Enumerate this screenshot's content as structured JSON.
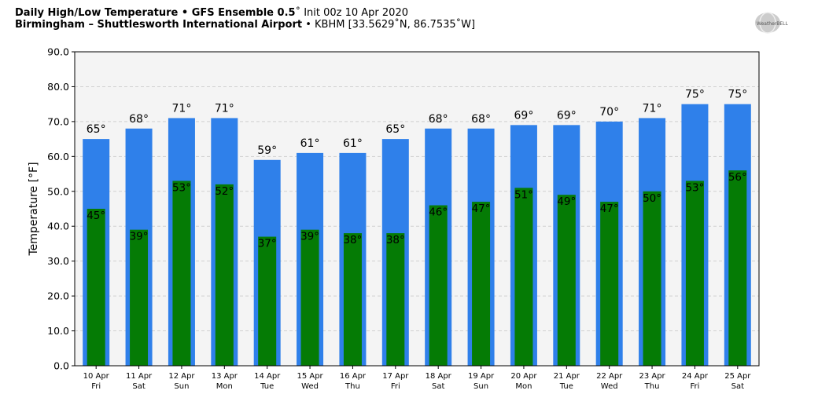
{
  "header": {
    "title_bold": "Daily High/Low Temperature • GFS Ensemble 0.5",
    "title_rest": "˚ Init 00z 10 Apr 2020",
    "location_bold": "Birmingham – Shuttlesworth International Airport",
    "location_rest": " • KBHM [33.5629˚N, 86.7535˚W]"
  },
  "logo": {
    "text": "WeatherBELL"
  },
  "colors": {
    "high": "#2f80ea",
    "low": "#057b05",
    "plot_bg": "#f4f4f4",
    "grid": "#d0d0d0"
  },
  "chart_data": {
    "type": "bar",
    "ylabel": "Temperature [°F]",
    "ylim": [
      0,
      90
    ],
    "yticks": [
      "0.0",
      "10.0",
      "20.0",
      "30.0",
      "40.0",
      "50.0",
      "60.0",
      "70.0",
      "80.0",
      "90.0"
    ],
    "grid": true,
    "categories": [
      "10 Apr",
      "11 Apr",
      "12 Apr",
      "13 Apr",
      "14 Apr",
      "15 Apr",
      "16 Apr",
      "17 Apr",
      "18 Apr",
      "19 Apr",
      "20 Apr",
      "21 Apr",
      "22 Apr",
      "23 Apr",
      "24 Apr",
      "25 Apr"
    ],
    "weekdays": [
      "Fri",
      "Sat",
      "Sun",
      "Mon",
      "Tue",
      "Wed",
      "Thu",
      "Fri",
      "Sat",
      "Sun",
      "Mon",
      "Tue",
      "Wed",
      "Thu",
      "Fri",
      "Sat"
    ],
    "series": [
      {
        "values": [
          65,
          68,
          71,
          71,
          59,
          61,
          61,
          65,
          68,
          68,
          69,
          69,
          70,
          71,
          75,
          75
        ]
      },
      {
        "values": [
          45,
          39,
          53,
          52,
          37,
          39,
          38,
          38,
          46,
          47,
          51,
          49,
          47,
          50,
          53,
          56
        ]
      }
    ],
    "high_labels": [
      "65°",
      "68°",
      "71°",
      "71°",
      "59°",
      "61°",
      "61°",
      "65°",
      "68°",
      "68°",
      "69°",
      "69°",
      "70°",
      "71°",
      "75°",
      "75°"
    ],
    "low_labels": [
      "45°",
      "39°",
      "53°",
      "52°",
      "37°",
      "39°",
      "38°",
      "38°",
      "46°",
      "47°",
      "51°",
      "49°",
      "47°",
      "50°",
      "53°",
      "56°"
    ]
  }
}
